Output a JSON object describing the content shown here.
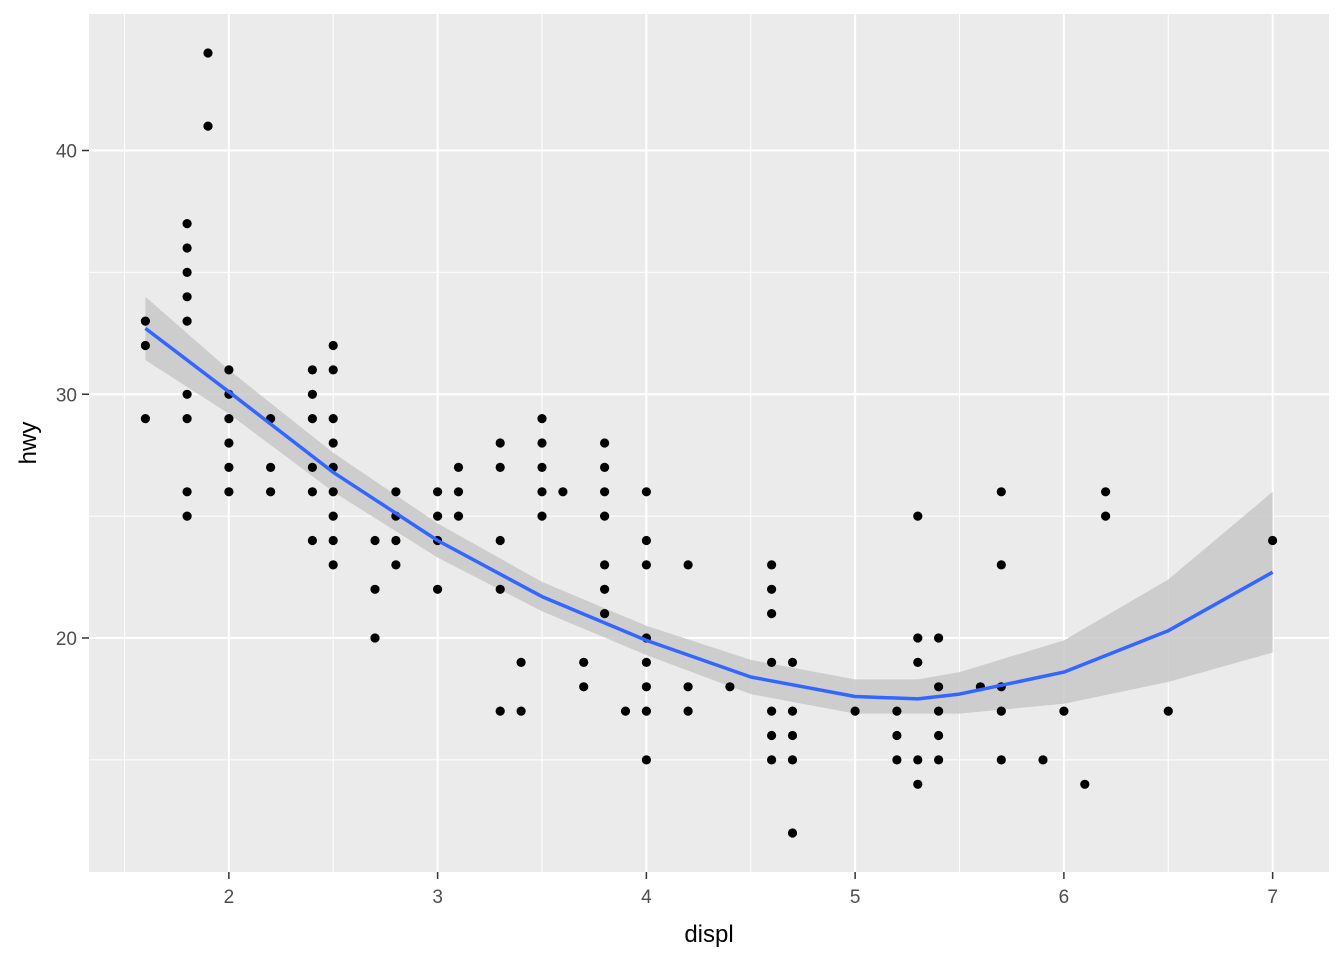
{
  "chart_data": {
    "type": "scatter",
    "xlabel": "displ",
    "ylabel": "hwy",
    "xlim": [
      1.33,
      7.27
    ],
    "ylim": [
      10.4,
      45.6
    ],
    "x_ticks": [
      2,
      3,
      4,
      5,
      6,
      7
    ],
    "y_ticks": [
      20,
      30,
      40
    ],
    "x_minor_ticks": [
      1.5,
      2.5,
      3.5,
      4.5,
      5.5,
      6.5
    ],
    "y_minor_ticks": [
      15,
      25,
      35
    ],
    "grid": true,
    "colors": {
      "panel": "#ebebeb",
      "grid": "#ffffff",
      "points": "#000000",
      "smooth_line": "#3366ff",
      "ribbon": "#c8c8c8"
    },
    "points": [
      [
        1.6,
        33
      ],
      [
        1.6,
        32
      ],
      [
        1.6,
        29
      ],
      [
        1.8,
        37
      ],
      [
        1.8,
        36
      ],
      [
        1.8,
        35
      ],
      [
        1.8,
        34
      ],
      [
        1.8,
        33
      ],
      [
        1.8,
        30
      ],
      [
        1.8,
        29
      ],
      [
        1.8,
        26
      ],
      [
        1.8,
        25
      ],
      [
        1.9,
        44
      ],
      [
        1.9,
        41
      ],
      [
        2.0,
        31
      ],
      [
        2.0,
        30
      ],
      [
        2.0,
        29
      ],
      [
        2.0,
        28
      ],
      [
        2.0,
        27
      ],
      [
        2.0,
        26
      ],
      [
        2.2,
        29
      ],
      [
        2.2,
        27
      ],
      [
        2.2,
        26
      ],
      [
        2.4,
        31
      ],
      [
        2.4,
        30
      ],
      [
        2.4,
        29
      ],
      [
        2.4,
        27
      ],
      [
        2.4,
        26
      ],
      [
        2.4,
        24
      ],
      [
        2.5,
        32
      ],
      [
        2.5,
        31
      ],
      [
        2.5,
        29
      ],
      [
        2.5,
        28
      ],
      [
        2.5,
        27
      ],
      [
        2.5,
        26
      ],
      [
        2.5,
        25
      ],
      [
        2.5,
        24
      ],
      [
        2.5,
        23
      ],
      [
        2.7,
        24
      ],
      [
        2.7,
        22
      ],
      [
        2.7,
        20
      ],
      [
        2.8,
        26
      ],
      [
        2.8,
        25
      ],
      [
        2.8,
        24
      ],
      [
        2.8,
        23
      ],
      [
        3.0,
        26
      ],
      [
        3.0,
        25
      ],
      [
        3.0,
        24
      ],
      [
        3.0,
        22
      ],
      [
        3.1,
        27
      ],
      [
        3.1,
        26
      ],
      [
        3.1,
        25
      ],
      [
        3.3,
        28
      ],
      [
        3.3,
        27
      ],
      [
        3.3,
        24
      ],
      [
        3.3,
        22
      ],
      [
        3.3,
        17
      ],
      [
        3.4,
        19
      ],
      [
        3.4,
        17
      ],
      [
        3.5,
        29
      ],
      [
        3.5,
        28
      ],
      [
        3.5,
        27
      ],
      [
        3.5,
        26
      ],
      [
        3.5,
        25
      ],
      [
        3.6,
        26
      ],
      [
        3.7,
        19
      ],
      [
        3.7,
        18
      ],
      [
        3.8,
        28
      ],
      [
        3.8,
        27
      ],
      [
        3.8,
        26
      ],
      [
        3.8,
        25
      ],
      [
        3.8,
        23
      ],
      [
        3.8,
        22
      ],
      [
        3.8,
        21
      ],
      [
        3.9,
        17
      ],
      [
        4.0,
        26
      ],
      [
        4.0,
        24
      ],
      [
        4.0,
        23
      ],
      [
        4.0,
        20
      ],
      [
        4.0,
        19
      ],
      [
        4.0,
        18
      ],
      [
        4.0,
        17
      ],
      [
        4.0,
        15
      ],
      [
        4.2,
        23
      ],
      [
        4.2,
        18
      ],
      [
        4.2,
        17
      ],
      [
        4.4,
        18
      ],
      [
        4.6,
        23
      ],
      [
        4.6,
        22
      ],
      [
        4.6,
        21
      ],
      [
        4.6,
        19
      ],
      [
        4.6,
        17
      ],
      [
        4.6,
        16
      ],
      [
        4.6,
        15
      ],
      [
        4.7,
        19
      ],
      [
        4.7,
        17
      ],
      [
        4.7,
        16
      ],
      [
        4.7,
        15
      ],
      [
        4.7,
        12
      ],
      [
        5.0,
        17
      ],
      [
        5.2,
        17
      ],
      [
        5.2,
        16
      ],
      [
        5.2,
        15
      ],
      [
        5.3,
        25
      ],
      [
        5.3,
        20
      ],
      [
        5.3,
        19
      ],
      [
        5.3,
        15
      ],
      [
        5.3,
        14
      ],
      [
        5.4,
        20
      ],
      [
        5.4,
        18
      ],
      [
        5.4,
        17
      ],
      [
        5.4,
        16
      ],
      [
        5.4,
        15
      ],
      [
        5.6,
        18
      ],
      [
        5.7,
        26
      ],
      [
        5.7,
        23
      ],
      [
        5.7,
        18
      ],
      [
        5.7,
        17
      ],
      [
        5.7,
        15
      ],
      [
        5.9,
        15
      ],
      [
        6.0,
        17
      ],
      [
        6.1,
        14
      ],
      [
        6.2,
        26
      ],
      [
        6.2,
        25
      ],
      [
        6.5,
        17
      ],
      [
        7.0,
        24
      ]
    ],
    "smooth": {
      "x": [
        1.6,
        2.0,
        2.5,
        3.0,
        3.5,
        4.0,
        4.5,
        5.0,
        5.3,
        5.5,
        6.0,
        6.5,
        7.0
      ],
      "y": [
        32.7,
        30.1,
        26.8,
        24.0,
        21.7,
        19.9,
        18.4,
        17.6,
        17.5,
        17.7,
        18.6,
        20.3,
        22.7
      ],
      "lower": [
        31.4,
        29.2,
        26.0,
        23.3,
        21.1,
        19.3,
        17.7,
        16.9,
        16.9,
        16.9,
        17.3,
        18.2,
        19.4
      ],
      "upper": [
        34.0,
        31.0,
        27.6,
        24.7,
        22.3,
        20.5,
        19.1,
        18.3,
        18.3,
        18.6,
        19.9,
        22.4,
        26.0
      ]
    }
  }
}
